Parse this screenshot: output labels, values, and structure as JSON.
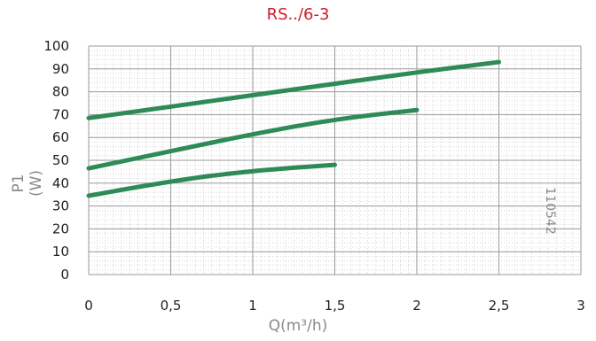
{
  "chart_data": {
    "type": "line",
    "title": "RS../6-3",
    "xlabel": "Q(m³/h)",
    "ylabel": "P1 (W)",
    "annotation": "110542",
    "xlim": [
      0,
      3
    ],
    "ylim": [
      0,
      100
    ],
    "x_ticks": [
      0,
      0.5,
      1,
      1.5,
      2,
      2.5,
      3
    ],
    "x_tick_labels": [
      "0",
      "0,5",
      "1",
      "1,5",
      "2",
      "2,5",
      "3"
    ],
    "y_ticks": [
      0,
      10,
      20,
      30,
      40,
      50,
      60,
      70,
      80,
      90,
      100
    ],
    "y_tick_labels": [
      "0",
      "10",
      "20",
      "30",
      "40",
      "50",
      "60",
      "70",
      "80",
      "90",
      "100"
    ],
    "grid": true,
    "series": [
      {
        "x": [
          0,
          0.5,
          1,
          1.5,
          2,
          2.5
        ],
        "values": [
          68.5,
          73.5,
          78.5,
          83.5,
          88.5,
          93
        ]
      },
      {
        "x": [
          0,
          0.5,
          1,
          1.5,
          2
        ],
        "values": [
          46.5,
          54,
          61.5,
          68,
          72
        ]
      },
      {
        "x": [
          0,
          0.5,
          1,
          1.5
        ],
        "values": [
          34.5,
          41,
          45.5,
          48
        ]
      }
    ],
    "colors": {
      "series": "#2e8b57",
      "title": "#d11a2a",
      "major_grid": "#9a9a9a",
      "minor_grid": "#c8c8c8",
      "axis_text": "#222222"
    }
  }
}
